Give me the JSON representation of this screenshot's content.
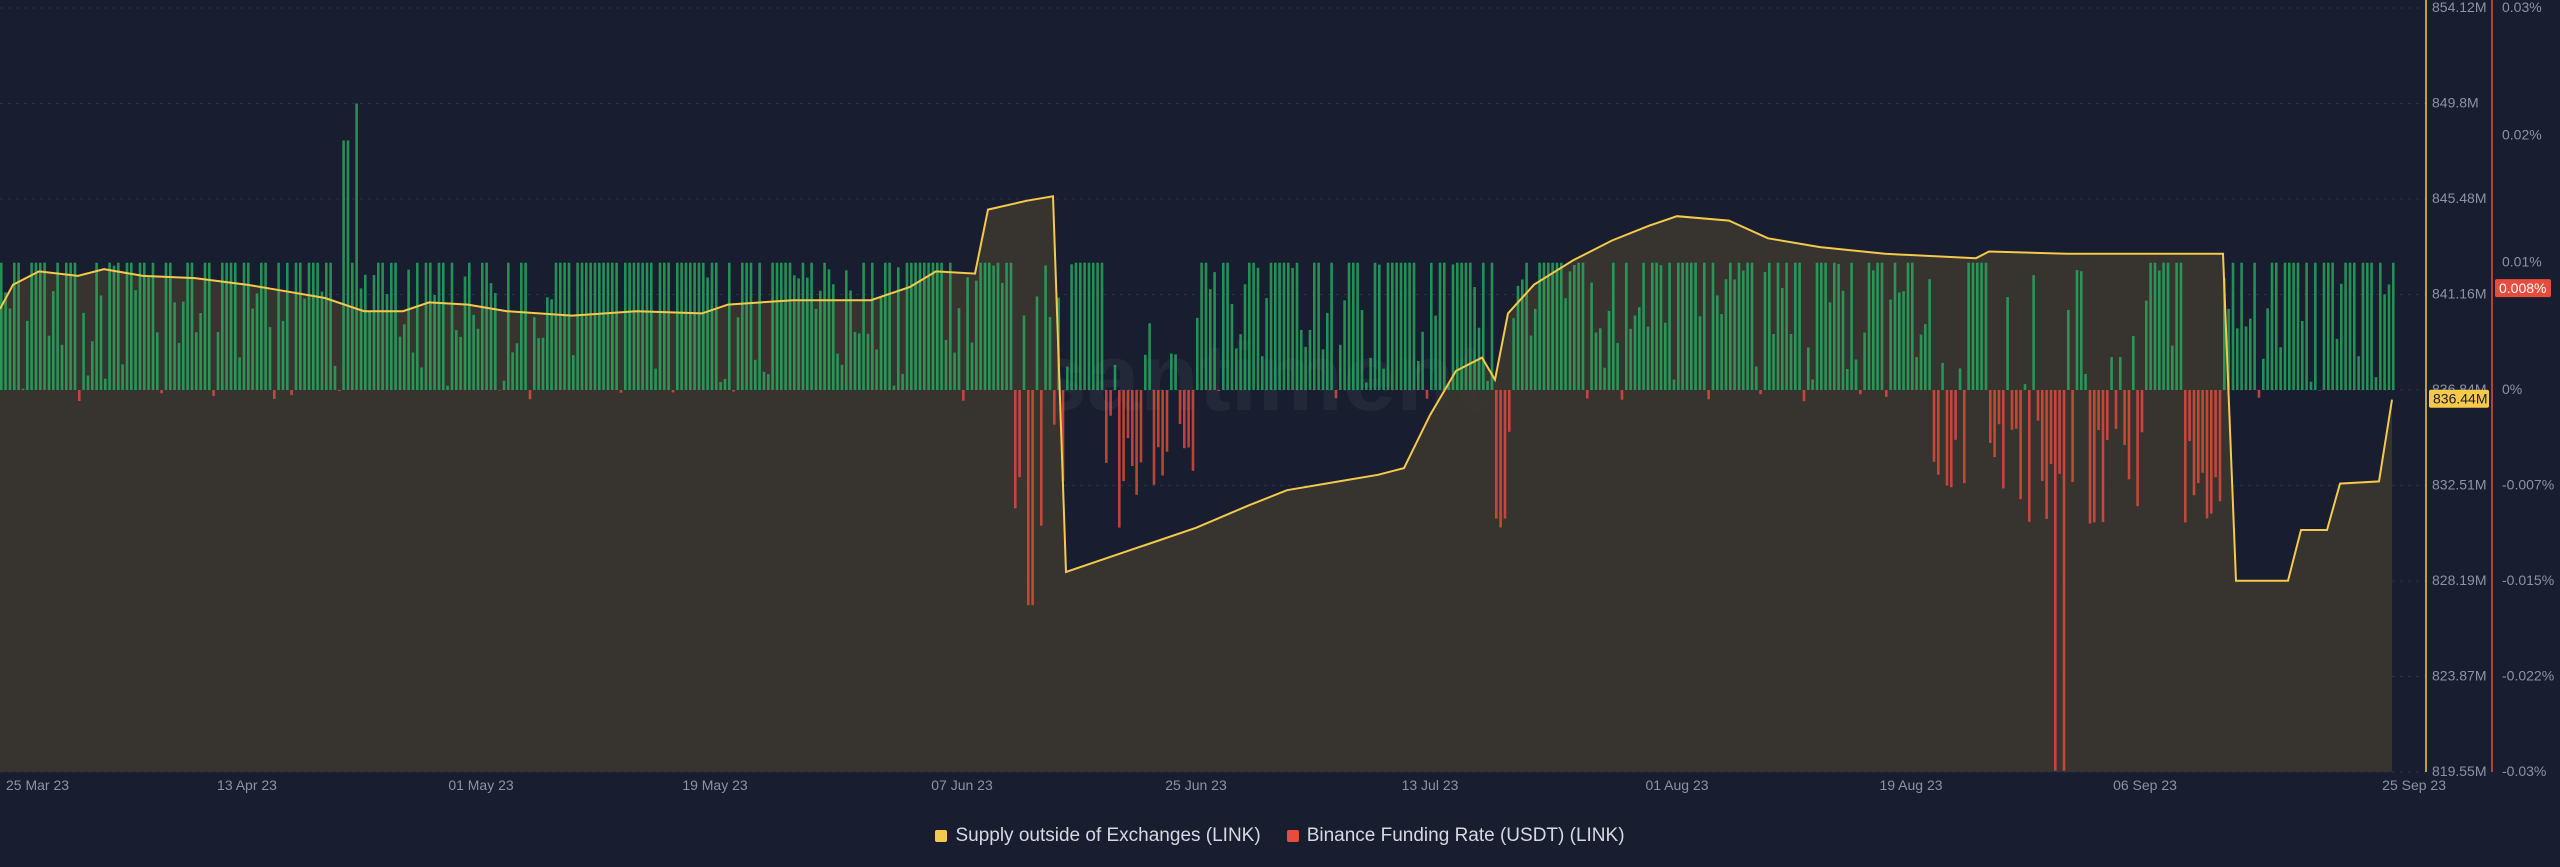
{
  "chart_data": {
    "type": "bar",
    "watermark": "santiment",
    "x_axis": {
      "start": "2023-03-25",
      "end": "2023-09-25",
      "tick_labels": [
        "25 Mar 23",
        "13 Apr 23",
        "01 May 23",
        "19 May 23",
        "07 Jun 23",
        "25 Jun 23",
        "13 Jul 23",
        "01 Aug 23",
        "19 Aug 23",
        "06 Sep 23",
        "25 Sep 23"
      ]
    },
    "y_left": {
      "label": "",
      "min": 819.55,
      "max": 854.12,
      "unit": "M",
      "tick_labels": [
        "854.12M",
        "849.8M",
        "845.48M",
        "841.16M",
        "836.84M",
        "832.51M",
        "828.19M",
        "823.87M",
        "819.55M"
      ],
      "current_value_label": "836.44M"
    },
    "y_right": {
      "label": "",
      "min": -0.03,
      "max": 0.03,
      "unit": "%",
      "tick_labels": [
        "0.03%",
        "0.02%",
        "0.01%",
        "0%",
        "-0.007%",
        "-0.015%",
        "-0.022%",
        "-0.03%"
      ],
      "current_value_label": "0.008%"
    },
    "series": [
      {
        "name": "Supply outside of Exchanges (LINK)",
        "type": "area",
        "axis": "left",
        "color": "#f5c94a",
        "points": [
          [
            "2023-03-25",
            840.5
          ],
          [
            "2023-03-26",
            841.6
          ],
          [
            "2023-03-28",
            842.2
          ],
          [
            "2023-03-31",
            842.0
          ],
          [
            "2023-04-02",
            842.3
          ],
          [
            "2023-04-05",
            842.0
          ],
          [
            "2023-04-09",
            841.9
          ],
          [
            "2023-04-13",
            841.6
          ],
          [
            "2023-04-16",
            841.3
          ],
          [
            "2023-04-19",
            841.0
          ],
          [
            "2023-04-22",
            840.4
          ],
          [
            "2023-04-25",
            840.4
          ],
          [
            "2023-04-27",
            840.8
          ],
          [
            "2023-04-30",
            840.7
          ],
          [
            "2023-05-03",
            840.4
          ],
          [
            "2023-05-08",
            840.2
          ],
          [
            "2023-05-13",
            840.4
          ],
          [
            "2023-05-18",
            840.3
          ],
          [
            "2023-05-20",
            840.7
          ],
          [
            "2023-05-25",
            840.9
          ],
          [
            "2023-05-31",
            840.9
          ],
          [
            "2023-06-03",
            841.5
          ],
          [
            "2023-06-05",
            842.2
          ],
          [
            "2023-06-08",
            842.1
          ],
          [
            "2023-06-09",
            845.0
          ],
          [
            "2023-06-12",
            845.4
          ],
          [
            "2023-06-14",
            845.6
          ],
          [
            "2023-06-15",
            828.6
          ],
          [
            "2023-06-18",
            829.2
          ],
          [
            "2023-06-21",
            829.8
          ],
          [
            "2023-06-25",
            830.6
          ],
          [
            "2023-06-29",
            831.6
          ],
          [
            "2023-07-02",
            832.3
          ],
          [
            "2023-07-06",
            832.7
          ],
          [
            "2023-07-09",
            833.0
          ],
          [
            "2023-07-11",
            833.3
          ],
          [
            "2023-07-13",
            835.7
          ],
          [
            "2023-07-15",
            837.7
          ],
          [
            "2023-07-17",
            838.3
          ],
          [
            "2023-07-18",
            837.3
          ],
          [
            "2023-07-19",
            840.3
          ],
          [
            "2023-07-21",
            841.6
          ],
          [
            "2023-07-24",
            842.7
          ],
          [
            "2023-07-27",
            843.6
          ],
          [
            "2023-07-30",
            844.3
          ],
          [
            "2023-08-01",
            844.7
          ],
          [
            "2023-08-05",
            844.5
          ],
          [
            "2023-08-08",
            843.7
          ],
          [
            "2023-08-12",
            843.3
          ],
          [
            "2023-08-17",
            843.0
          ],
          [
            "2023-08-24",
            842.8
          ],
          [
            "2023-08-25",
            843.1
          ],
          [
            "2023-08-31",
            843.0
          ],
          [
            "2023-09-06",
            843.0
          ],
          [
            "2023-09-12",
            843.0
          ],
          [
            "2023-09-13",
            828.2
          ],
          [
            "2023-09-17",
            828.2
          ],
          [
            "2023-09-18",
            830.5
          ],
          [
            "2023-09-20",
            830.5
          ],
          [
            "2023-09-21",
            832.6
          ],
          [
            "2023-09-24",
            832.7
          ],
          [
            "2023-09-25",
            836.4
          ]
        ]
      },
      {
        "name": "Binance Funding Rate (USDT) (LINK)",
        "type": "bar",
        "axis": "right",
        "color_positive": "#27ae60",
        "color_negative": "#e74c3c",
        "notable_values": [
          [
            "2023-04-20",
            0.0196
          ],
          [
            "2023-04-21",
            0.0225
          ],
          [
            "2023-06-12",
            -0.0169
          ],
          [
            "2023-08-21",
            -0.0209
          ],
          [
            "2023-08-30",
            -0.0299
          ],
          [
            "2023-07-18",
            -0.0101
          ],
          [
            "2023-09-10",
            -0.0091
          ]
        ],
        "typical_positive": 0.01,
        "typical_negative_range": [
          -0.001,
          -0.0125
        ]
      }
    ],
    "legend": [
      {
        "name": "Supply outside of Exchanges (LINK)",
        "color": "#f5c94a"
      },
      {
        "name": "Binance Funding Rate (USDT) (LINK)",
        "color": "#e74c3c"
      }
    ],
    "grid": true,
    "legend_placement": "bottom-center"
  }
}
